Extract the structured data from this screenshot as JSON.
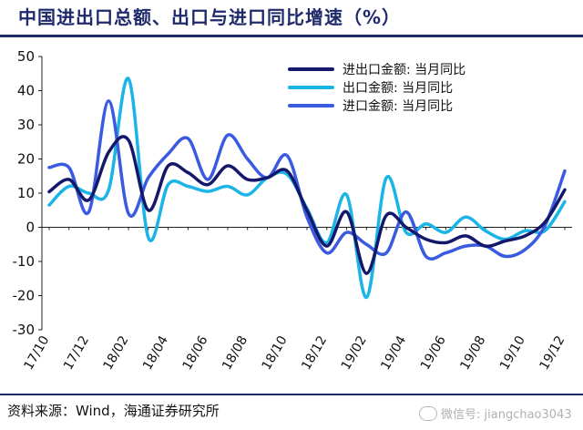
{
  "title": "中国进出口总额、出口与进口同比增速（%）",
  "source": "资料来源：Wind，海通证券研究所",
  "watermark": "微信号: jiangchao3043",
  "colors": {
    "total": "#14186b",
    "export": "#1ab4e6",
    "import": "#3a5be0",
    "rule": "#1f2a6b"
  },
  "chart_data": {
    "type": "line",
    "xlabel": "",
    "ylabel": "",
    "ylim": [
      -30,
      50
    ],
    "yticks": [
      -30,
      -20,
      -10,
      0,
      10,
      20,
      30,
      40,
      50
    ],
    "grid": false,
    "legend_position": "top-right",
    "x": [
      "17/10",
      "17/11",
      "17/12",
      "18/01",
      "18/02",
      "18/03",
      "18/04",
      "18/05",
      "18/06",
      "18/07",
      "18/08",
      "18/09",
      "18/10",
      "18/11",
      "18/12",
      "19/01",
      "19/02",
      "19/03",
      "19/04",
      "19/05",
      "19/06",
      "19/07",
      "19/08",
      "19/09",
      "19/10",
      "19/11",
      "19/12"
    ],
    "xtick_labels": [
      "17/10",
      "17/12",
      "18/02",
      "18/04",
      "18/06",
      "18/08",
      "18/10",
      "18/12",
      "19/02",
      "19/04",
      "19/06",
      "19/08",
      "19/10",
      "19/12"
    ],
    "series": [
      {
        "name": "进出口金额: 当月同比",
        "key": "total",
        "values": [
          10.4,
          14,
          8,
          22,
          25.5,
          5,
          18,
          16,
          12.5,
          18,
          14,
          14.5,
          16.5,
          5,
          -5.5,
          4.5,
          -13.5,
          3.5,
          0,
          -3.5,
          -4.5,
          -2.5,
          -5.5,
          -4,
          -2.5,
          1.5,
          11
        ]
      },
      {
        "name": "出口金额: 当月同比",
        "key": "export",
        "values": [
          6.5,
          12,
          10,
          11,
          43.5,
          -3,
          12.5,
          12,
          10.5,
          12,
          9.5,
          14.5,
          15.5,
          5.5,
          -4.5,
          9.5,
          -20.5,
          14.5,
          -1.5,
          1,
          -1.5,
          3,
          -1,
          -3.5,
          -1,
          -1,
          7.5
        ]
      },
      {
        "name": "进口金额: 当月同比",
        "key": "import",
        "values": [
          17.5,
          17.5,
          4.5,
          37,
          4,
          14.5,
          21.5,
          26,
          14,
          27,
          20,
          14.5,
          21,
          3,
          -7.5,
          -1.5,
          -5,
          -7.5,
          4.5,
          -8.5,
          -7.5,
          -5.5,
          -5.5,
          -8.5,
          -6.5,
          0.5,
          16.5
        ]
      }
    ]
  }
}
